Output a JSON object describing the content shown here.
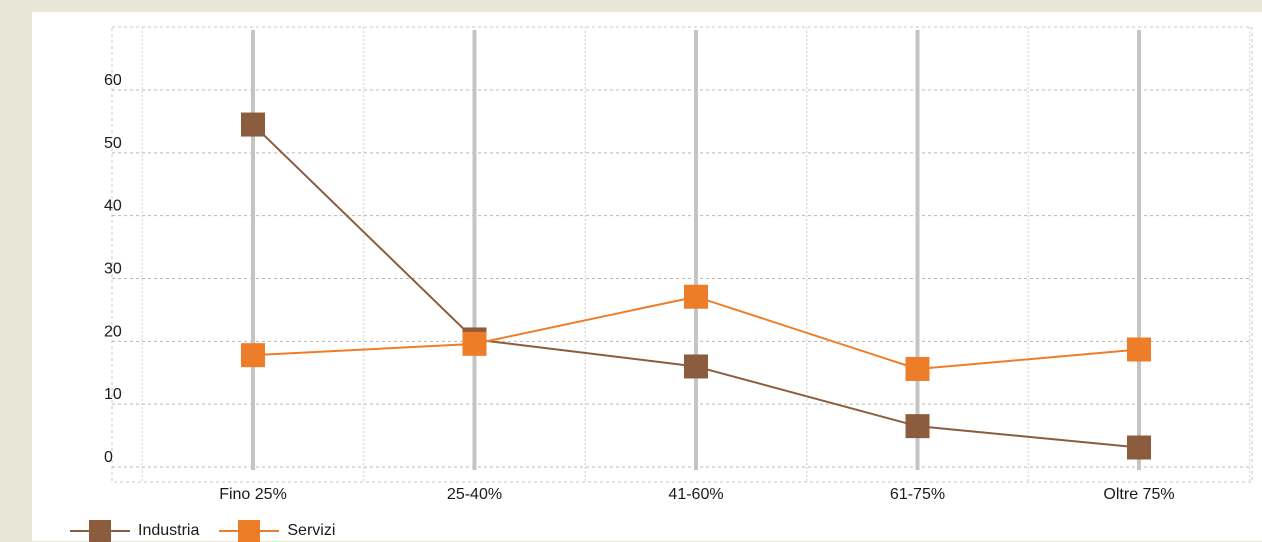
{
  "chart_data": {
    "type": "line",
    "categories": [
      "Fino 25%",
      "25-40%",
      "41-60%",
      "61-75%",
      "Oltre 75%"
    ],
    "series": [
      {
        "name": "Industria",
        "values": [
          54.5,
          20.3,
          16.0,
          6.5,
          3.1
        ],
        "color": "#8c5c3e"
      },
      {
        "name": "Servizi",
        "values": [
          17.8,
          19.6,
          27.1,
          15.6,
          18.7
        ],
        "color": "#ee7d2a"
      }
    ],
    "yticks": [
      "0",
      "10",
      "20",
      "30",
      "40",
      "50",
      "60"
    ],
    "ylim": [
      0,
      60
    ],
    "grid": true,
    "legend": "bottom-left"
  }
}
